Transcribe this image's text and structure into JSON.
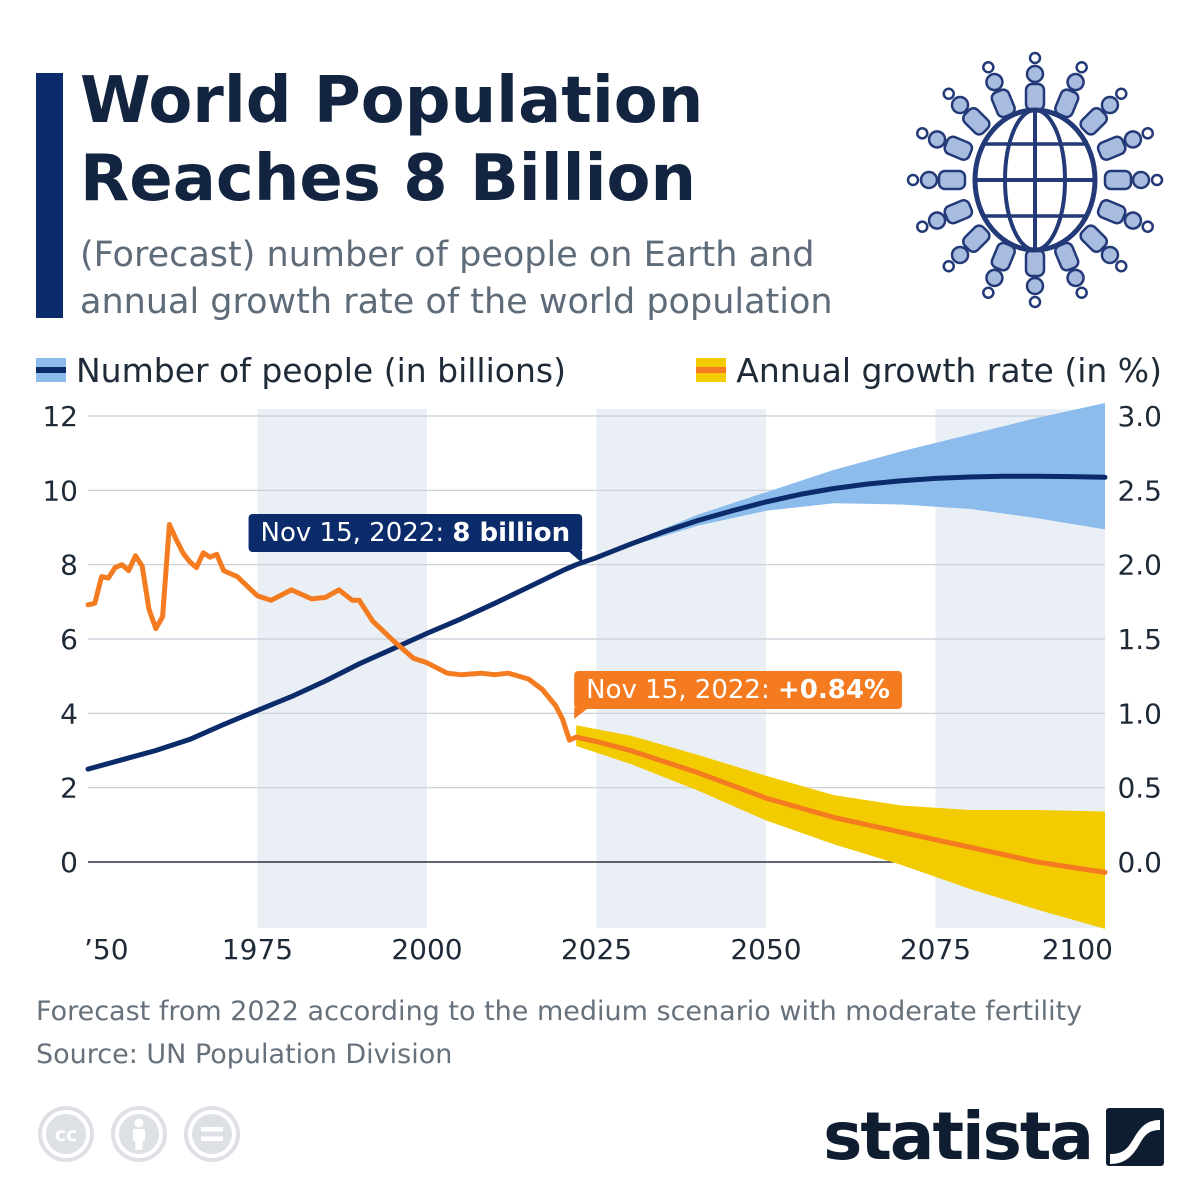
{
  "header": {
    "title_line1": "World Population",
    "title_line2": "Reaches 8 Billion",
    "subtitle_line1": "(Forecast) number of people on Earth and",
    "subtitle_line2": "annual growth rate of the world population",
    "accent_color": "#0b2b6b",
    "illustration_icon": "globe-with-people-icon"
  },
  "legend": {
    "population_label": "Number of people (in billions)",
    "growth_label": "Annual growth rate (in %)"
  },
  "annotations": {
    "population_prefix": "Nov 15, 2022:",
    "population_value": "8 billion",
    "growth_prefix": "Nov 15, 2022:",
    "growth_value": "+0.84%"
  },
  "footer": {
    "note": "Forecast from 2022 according to the medium scenario with moderate fertility",
    "source": "Source: UN Population Division"
  },
  "licenses": [
    "cc-icon",
    "attribution-icon",
    "no-derivatives-icon"
  ],
  "brand": {
    "name": "statista",
    "logo_icon": "statista-logo-icon"
  },
  "colors": {
    "population_line": "#0b2b6b",
    "population_band": "#8cbcec",
    "growth_line": "#f47b20",
    "growth_band": "#f2cb00",
    "shade": "#eaeff5",
    "text": "#1e2a38"
  },
  "chart_data": {
    "type": "line",
    "x_axis": {
      "range": [
        1950,
        2100
      ],
      "tick_labels": [
        "’50",
        "1975",
        "2000",
        "2025",
        "2050",
        "2075",
        "2100"
      ],
      "tick_years": [
        1950,
        1975,
        2000,
        2025,
        2050,
        2075,
        2100
      ]
    },
    "y_left": {
      "range": [
        -1.8,
        12
      ],
      "ticks": [
        0,
        2,
        4,
        6,
        8,
        10,
        12
      ],
      "tick_labels": [
        "0",
        "2",
        "4",
        "6",
        "8",
        "10",
        "12"
      ]
    },
    "y_right": {
      "range": [
        -0.45,
        3.0
      ],
      "ticks": [
        0,
        0.5,
        1,
        1.5,
        2,
        2.5,
        3
      ],
      "tick_labels": [
        "0.0",
        "0.5",
        "1.0",
        "1.5",
        "2.0",
        "2.5",
        "3.0"
      ]
    },
    "grid": true,
    "shaded_year_ranges": [
      [
        1975,
        2000
      ],
      [
        2025,
        2050
      ],
      [
        2075,
        2100
      ]
    ],
    "series": [
      {
        "name": "Number of people (in billions)",
        "axis": "left",
        "x": [
          1950,
          1955,
          1960,
          1965,
          1970,
          1975,
          1980,
          1985,
          1990,
          1995,
          2000,
          2005,
          2010,
          2015,
          2020,
          2022,
          2025,
          2030,
          2035,
          2040,
          2045,
          2050,
          2055,
          2060,
          2065,
          2070,
          2075,
          2080,
          2085,
          2090,
          2095,
          2100
        ],
        "values": [
          2.5,
          2.75,
          3.0,
          3.3,
          3.7,
          4.08,
          4.45,
          4.87,
          5.33,
          5.74,
          6.15,
          6.54,
          6.96,
          7.4,
          7.84,
          8.0,
          8.19,
          8.55,
          8.89,
          9.19,
          9.45,
          9.69,
          9.89,
          10.05,
          10.17,
          10.26,
          10.32,
          10.36,
          10.38,
          10.38,
          10.37,
          10.35
        ],
        "uncertainty_x": [
          2022,
          2030,
          2040,
          2050,
          2060,
          2070,
          2080,
          2090,
          2100
        ],
        "uncertainty_lower": [
          8.0,
          8.5,
          9.05,
          9.45,
          9.65,
          9.62,
          9.5,
          9.25,
          8.95
        ],
        "uncertainty_upper": [
          8.0,
          8.6,
          9.35,
          9.95,
          10.55,
          11.05,
          11.5,
          11.95,
          12.35
        ]
      },
      {
        "name": "Annual growth rate (in %)",
        "axis": "right",
        "x": [
          1950,
          1951,
          1952,
          1953,
          1954,
          1955,
          1956,
          1957,
          1958,
          1959,
          1960,
          1961,
          1962,
          1963,
          1964,
          1965,
          1966,
          1967,
          1968,
          1969,
          1970,
          1972,
          1975,
          1977,
          1980,
          1983,
          1985,
          1987,
          1989,
          1990,
          1992,
          1995,
          1998,
          2000,
          2003,
          2005,
          2008,
          2010,
          2012,
          2015,
          2017,
          2019,
          2020,
          2021,
          2022,
          2025,
          2030,
          2040,
          2050,
          2060,
          2070,
          2080,
          2090,
          2100
        ],
        "values": [
          1.73,
          1.74,
          1.92,
          1.91,
          1.98,
          2.0,
          1.96,
          2.06,
          1.99,
          1.7,
          1.57,
          1.65,
          2.27,
          2.17,
          2.08,
          2.02,
          1.98,
          2.08,
          2.05,
          2.07,
          1.96,
          1.92,
          1.79,
          1.76,
          1.83,
          1.77,
          1.78,
          1.83,
          1.76,
          1.76,
          1.62,
          1.49,
          1.37,
          1.34,
          1.27,
          1.26,
          1.27,
          1.26,
          1.27,
          1.23,
          1.16,
          1.05,
          0.96,
          0.82,
          0.84,
          0.81,
          0.75,
          0.6,
          0.43,
          0.3,
          0.2,
          0.1,
          0.0,
          -0.07
        ],
        "uncertainty_x": [
          2022,
          2030,
          2040,
          2050,
          2060,
          2070,
          2080,
          2090,
          2100
        ],
        "uncertainty_lower": [
          0.78,
          0.66,
          0.48,
          0.28,
          0.12,
          -0.02,
          -0.18,
          -0.32,
          -0.45
        ],
        "uncertainty_upper": [
          0.92,
          0.85,
          0.72,
          0.58,
          0.45,
          0.38,
          0.35,
          0.35,
          0.34
        ]
      }
    ]
  }
}
